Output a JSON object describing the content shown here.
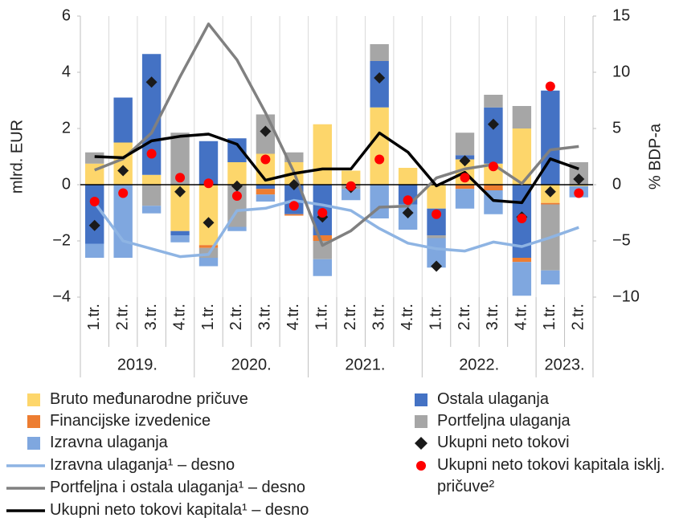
{
  "chart_data": {
    "type": "bar",
    "y_label": "mlrd. EUR",
    "y2_label": "% BDP-a",
    "categories": [
      "1.tr.",
      "2.tr.",
      "3.tr.",
      "4.tr.",
      "1.tr.",
      "2.tr.",
      "3.tr.",
      "4.tr.",
      "1.tr.",
      "2.tr.",
      "3.tr.",
      "4.tr.",
      "1.tr.",
      "2.tr.",
      "3.tr.",
      "4.tr.",
      "1.tr.",
      "2.tr."
    ],
    "groups": [
      "2019.",
      "2020.",
      "2021.",
      "2022.",
      "2023."
    ],
    "ylim": [
      -4,
      6
    ],
    "yticks": [
      {
        "value": -4,
        "label": "−4"
      },
      {
        "value": -2,
        "label": "−2"
      },
      0,
      2,
      4,
      6
    ],
    "y2lim": [
      -10,
      15
    ],
    "y2ticks": [
      {
        "value": -10,
        "label": "−10"
      },
      {
        "value": -5,
        "label": "−5"
      },
      0,
      5,
      10,
      15
    ],
    "grid": true,
    "series": [
      {
        "name": "Bruto međunarodne pričuve",
        "type": "bar",
        "color": "#fdd66b",
        "values": [
          0.75,
          1.5,
          0.35,
          -1.65,
          -2.15,
          0.8,
          1.1,
          0.8,
          2.15,
          0.5,
          2.75,
          0.6,
          -0.85,
          0.9,
          0.75,
          2.0,
          -0.65,
          -0.05
        ]
      },
      {
        "name": "Ostala ulaganja",
        "type": "bar",
        "color": "#4472c4",
        "values": [
          -2.1,
          1.6,
          4.3,
          -0.15,
          1.55,
          0.85,
          -0.15,
          -1.05,
          -1.8,
          0,
          1.65,
          -0.7,
          -0.95,
          0.15,
          2.0,
          -2.6,
          3.35,
          0
        ]
      },
      {
        "name": "Financijske izvedenice",
        "type": "bar",
        "color": "#ed7d31",
        "values": [
          0,
          0,
          0,
          0,
          -0.1,
          0,
          -0.2,
          -0.05,
          -0.2,
          0,
          0,
          0,
          0,
          -0.15,
          -0.2,
          -0.15,
          -0.05,
          0
        ]
      },
      {
        "name": "Portfeljna ulaganja",
        "type": "bar",
        "color": "#a6a6a6",
        "values": [
          0.4,
          0,
          -0.75,
          1.85,
          -0.35,
          -1.5,
          1.4,
          0.35,
          -0.65,
          -0.15,
          0.6,
          0,
          -0.1,
          0.8,
          0.45,
          0.8,
          -2.35,
          0.8
        ]
      },
      {
        "name": "Izravna ulaganja",
        "type": "bar",
        "color": "#7fa7df",
        "values": [
          -0.5,
          -2.6,
          -0.27,
          -0.25,
          -0.3,
          -0.15,
          -0.25,
          0,
          -0.6,
          -0.4,
          -1.2,
          -0.9,
          -1.05,
          -0.7,
          -0.85,
          -1.2,
          -0.5,
          -0.4
        ]
      },
      {
        "name": "Ukupni neto tokovi",
        "type": "scatter",
        "marker": "diamond",
        "color": "#1a1a1a",
        "values": [
          -1.45,
          0.5,
          3.65,
          -0.25,
          -1.35,
          -0.05,
          1.9,
          0.0,
          -1.15,
          -0.1,
          3.8,
          -1.0,
          -2.9,
          0.85,
          2.15,
          -1.15,
          -0.25,
          0.2
        ]
      },
      {
        "name": "Izravna ulaganja¹ – desno",
        "type": "line",
        "axis": "y2",
        "color": "#8eb4e3",
        "values": [
          -1.6,
          -5.0,
          -5.7,
          -6.4,
          -6.2,
          -2.3,
          -2.1,
          -1.4,
          -1.8,
          -2.3,
          -3.9,
          -5.2,
          -5.7,
          -5.9,
          -5.1,
          -5.5,
          -4.7,
          -3.8
        ]
      },
      {
        "name": "Ukupni neto tokovi kapitala isklj. pričuve²",
        "type": "scatter",
        "marker": "circle",
        "color": "#ff0000",
        "values": [
          -0.6,
          -0.3,
          1.1,
          0.25,
          0.05,
          -0.4,
          0.9,
          -0.75,
          -1.0,
          -0.05,
          0.9,
          -0.55,
          -1.05,
          0.25,
          0.65,
          -1.2,
          3.5,
          -0.3
        ]
      },
      {
        "name": "Portfeljna i ostala ulaganja¹ – desno",
        "type": "line",
        "axis": "y2",
        "color": "#808080",
        "values": [
          1.3,
          2.3,
          4.6,
          9.6,
          14.3,
          11.1,
          6.4,
          1.1,
          -5.4,
          -4.1,
          -2.0,
          -1.9,
          0.6,
          1.4,
          1.8,
          0.1,
          3.1,
          3.4
        ]
      },
      {
        "name": "Ukupni neto tokovi kapitala¹ – desno",
        "type": "line",
        "axis": "y2",
        "color": "#000000",
        "values": [
          2.5,
          2.4,
          3.9,
          4.3,
          4.5,
          3.6,
          0.4,
          1.0,
          1.4,
          1.4,
          4.6,
          2.9,
          -0.1,
          1.1,
          -1.4,
          -1.6,
          2.3,
          1.4
        ]
      }
    ]
  }
}
